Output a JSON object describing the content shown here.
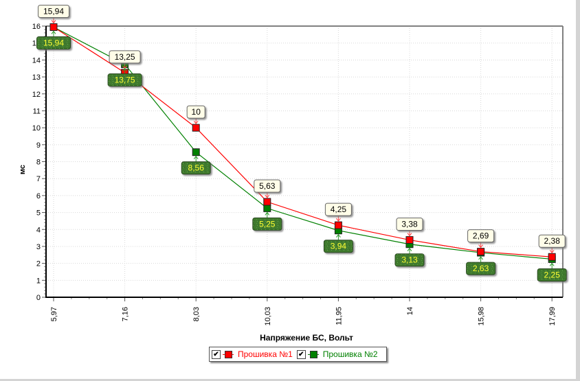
{
  "chart_data": {
    "type": "line",
    "title": "",
    "xlabel": "Напряжение БС, Вольт",
    "ylabel": "мс",
    "categories": [
      "5,97",
      "7,16",
      "8,03",
      "10,03",
      "11,95",
      "14",
      "15,98",
      "17,99"
    ],
    "ylim": [
      0,
      16
    ],
    "yticks": [
      "0",
      "1",
      "2",
      "3",
      "4",
      "5",
      "6",
      "7",
      "8",
      "9",
      "10",
      "11",
      "12",
      "13",
      "14",
      "15",
      "16"
    ],
    "grid": true,
    "legend_position": "bottom-center",
    "series": [
      {
        "name": "Прошивка №1",
        "color": "#ff0000",
        "values": [
          15.94,
          13.25,
          10,
          5.63,
          4.25,
          3.38,
          2.69,
          2.38
        ],
        "labels": [
          "15,94",
          "13,25",
          "10",
          "5,63",
          "4,25",
          "3,38",
          "2,69",
          "2,38"
        ],
        "checked": true
      },
      {
        "name": "Прошивка №2",
        "color": "#008000",
        "values": [
          15.94,
          13.75,
          8.56,
          5.25,
          3.94,
          3.13,
          2.63,
          2.25
        ],
        "labels": [
          "15,94",
          "13,75",
          "8,56",
          "5,25",
          "3,94",
          "3,13",
          "2,63",
          "2,25"
        ],
        "checked": true
      }
    ]
  },
  "legend": {
    "items": [
      {
        "label": "Прошивка №1",
        "checkmark": "✔"
      },
      {
        "label": "Прошивка №2",
        "checkmark": "✔"
      }
    ]
  }
}
